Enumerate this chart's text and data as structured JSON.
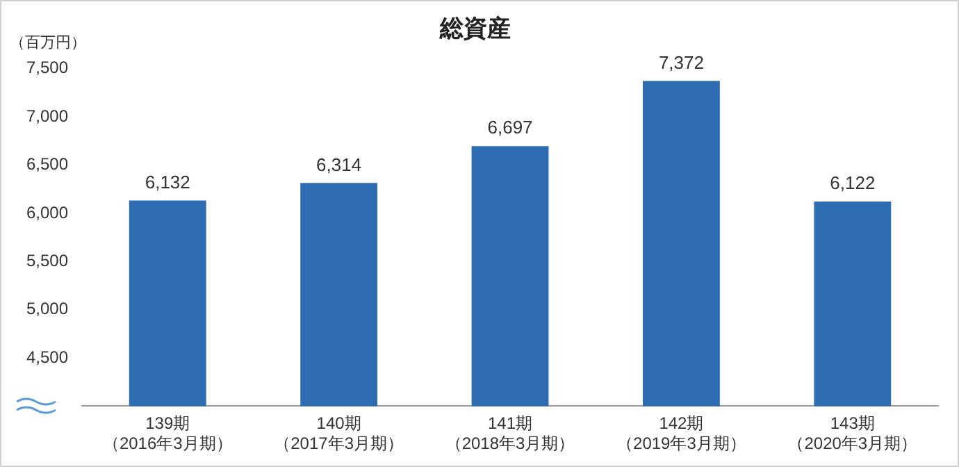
{
  "chart_data": {
    "type": "bar",
    "title": "総資産",
    "ylabel": "（百万円）",
    "categories": [
      "139期（2016年3月期）",
      "140期（2017年3月期）",
      "141期（2018年3月期）",
      "142期（2019年3月期）",
      "143期（2020年3月期）"
    ],
    "values": [
      6132,
      6314,
      6697,
      7372,
      6122
    ],
    "value_labels": [
      "6,132",
      "6,314",
      "6,697",
      "7,372",
      "6,122"
    ],
    "color": "#2f6db3",
    "ylim": [
      4000,
      7500
    ],
    "yticks": [
      {
        "value": 4500,
        "label": "4,500"
      },
      {
        "value": 5000,
        "label": "5,000"
      },
      {
        "value": 5500,
        "label": "5,500"
      },
      {
        "value": 6000,
        "label": "6,000"
      },
      {
        "value": 6500,
        "label": "6,500"
      },
      {
        "value": 7000,
        "label": "7,000"
      },
      {
        "value": 7500,
        "label": "7,500"
      }
    ],
    "grid": false,
    "legend": false
  }
}
